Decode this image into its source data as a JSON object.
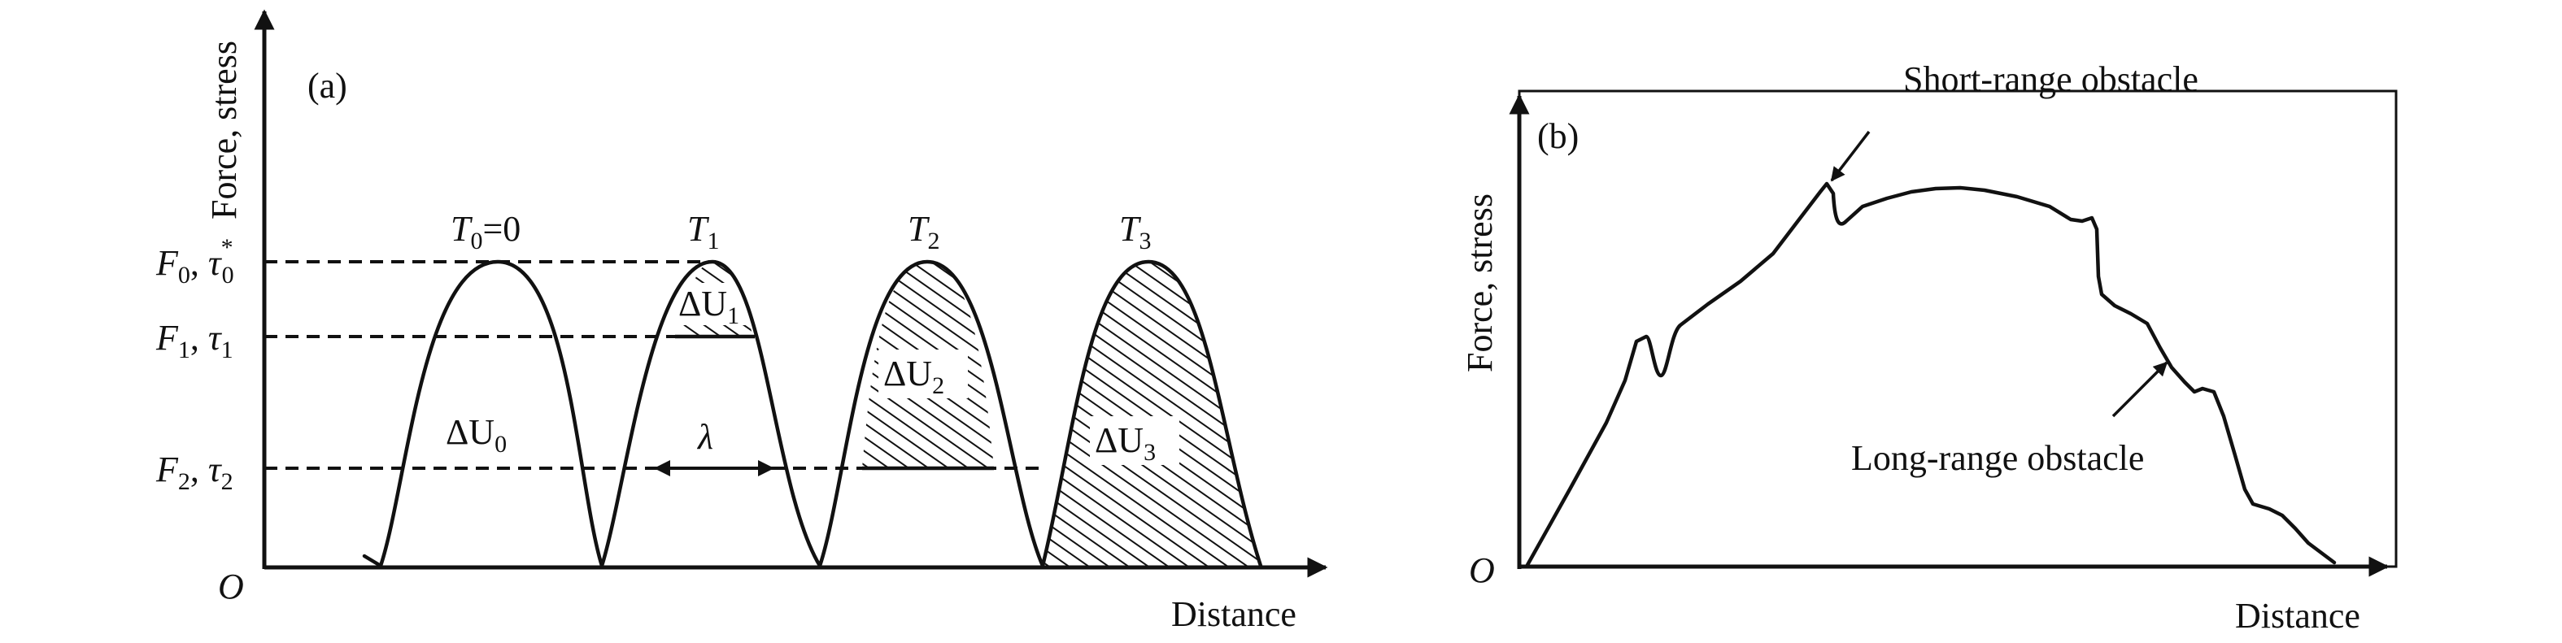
{
  "panel_a": {
    "label": "(a)",
    "y_axis_label": "Force, stress",
    "x_axis_label": "Distance",
    "origin_label": "O",
    "barriers": [
      {
        "name": "T",
        "sub": "0",
        "suffix": "=0"
      },
      {
        "name": "T",
        "sub": "1",
        "suffix": ""
      },
      {
        "name": "T",
        "sub": "2",
        "suffix": ""
      },
      {
        "name": "T",
        "sub": "3",
        "suffix": ""
      }
    ],
    "levels": [
      {
        "f": "F",
        "f_sub": "0",
        "tau": "τ",
        "tau_sub": "0",
        "tau_sup": "*"
      },
      {
        "f": "F",
        "f_sub": "1",
        "tau": "τ",
        "tau_sub": "1",
        "tau_sup": ""
      },
      {
        "f": "F",
        "f_sub": "2",
        "tau": "τ",
        "tau_sub": "2",
        "tau_sup": ""
      }
    ],
    "energies": [
      {
        "name": "ΔU",
        "sub": "0"
      },
      {
        "name": "ΔU",
        "sub": "1"
      },
      {
        "name": "ΔU",
        "sub": "2"
      },
      {
        "name": "ΔU",
        "sub": "3"
      }
    ],
    "lambda_label": "λ"
  },
  "panel_b": {
    "label": "(b)",
    "y_axis_label": "Force, stress",
    "x_axis_label": "Distance",
    "origin_label": "O",
    "short_range_label": "Short-range obstacle",
    "long_range_label": "Long-range obstacle"
  }
}
